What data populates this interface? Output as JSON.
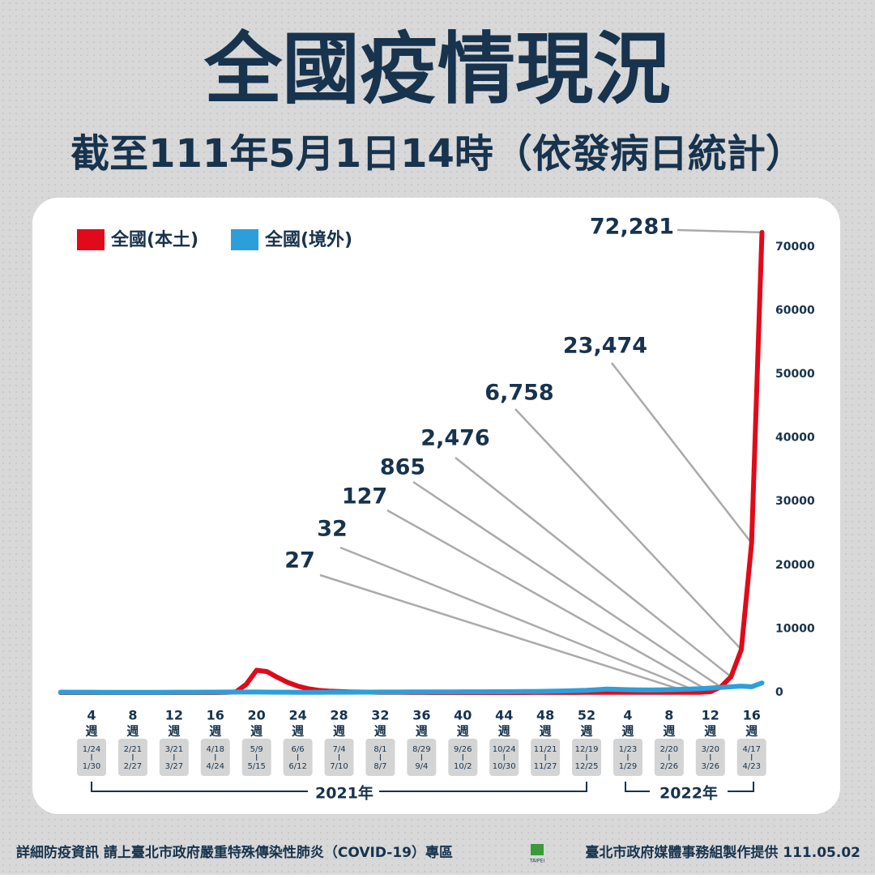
{
  "chart_data": {
    "type": "line",
    "title": "全國疫情現況",
    "subtitle": "截至111年5月1日14時（依發病日統計）",
    "categories": [
      null,
      null,
      null,
      "4",
      null,
      null,
      null,
      "8",
      null,
      null,
      null,
      "12",
      null,
      null,
      null,
      "16",
      null,
      null,
      null,
      "20",
      null,
      null,
      null,
      "24",
      null,
      null,
      null,
      "28",
      null,
      null,
      null,
      "32",
      null,
      null,
      null,
      "36",
      null,
      null,
      null,
      "40",
      null,
      null,
      null,
      "44",
      null,
      null,
      null,
      "48",
      null,
      null,
      null,
      "52",
      null,
      null,
      null,
      "4",
      null,
      null,
      null,
      "8",
      null,
      null,
      null,
      "12",
      null,
      null,
      null,
      "16",
      null
    ],
    "week_unit": "週",
    "category_dates": [
      null,
      null,
      null,
      [
        "1/24",
        "1/30"
      ],
      null,
      null,
      null,
      [
        "2/21",
        "2/27"
      ],
      null,
      null,
      null,
      [
        "3/21",
        "3/27"
      ],
      null,
      null,
      null,
      [
        "4/18",
        "4/24"
      ],
      null,
      null,
      null,
      [
        "5/9",
        "5/15"
      ],
      null,
      null,
      null,
      [
        "6/6",
        "6/12"
      ],
      null,
      null,
      null,
      [
        "7/4",
        "7/10"
      ],
      null,
      null,
      null,
      [
        "8/1",
        "8/7"
      ],
      null,
      null,
      null,
      [
        "8/29",
        "9/4"
      ],
      null,
      null,
      null,
      [
        "9/26",
        "10/2"
      ],
      null,
      null,
      null,
      [
        "10/24",
        "10/30"
      ],
      null,
      null,
      null,
      [
        "11/21",
        "11/27"
      ],
      null,
      null,
      null,
      [
        "12/19",
        "12/25"
      ],
      null,
      null,
      null,
      [
        "1/23",
        "1/29"
      ],
      null,
      null,
      null,
      [
        "2/20",
        "2/26"
      ],
      null,
      null,
      null,
      [
        "3/20",
        "3/26"
      ],
      null,
      null,
      null,
      [
        "4/17",
        "4/23"
      ],
      null
    ],
    "year_labels": [
      "2021年",
      "2022年"
    ],
    "series": [
      {
        "name": "全國(本土)",
        "color": "#e10a1a",
        "values": [
          3,
          2,
          1,
          2,
          3,
          2,
          1,
          0,
          1,
          1,
          2,
          1,
          2,
          3,
          4,
          5,
          20,
          90,
          1300,
          3500,
          3300,
          2400,
          1600,
          1000,
          600,
          350,
          220,
          150,
          100,
          80,
          60,
          40,
          30,
          20,
          10,
          8,
          6,
          5,
          4,
          3,
          3,
          4,
          5,
          4,
          5,
          6,
          8,
          10,
          12,
          15,
          18,
          20,
          22,
          25,
          28,
          30,
          26,
          24,
          22,
          20,
          25,
          27,
          32,
          127,
          865,
          2476,
          6758,
          23474,
          72281
        ],
        "value_labels": [
          null,
          null,
          null,
          null,
          null,
          null,
          null,
          null,
          null,
          null,
          null,
          null,
          null,
          null,
          null,
          null,
          null,
          null,
          null,
          null,
          null,
          null,
          null,
          null,
          null,
          null,
          null,
          null,
          null,
          null,
          null,
          null,
          null,
          null,
          null,
          null,
          null,
          null,
          null,
          null,
          null,
          null,
          null,
          null,
          null,
          null,
          null,
          null,
          null,
          null,
          null,
          null,
          null,
          null,
          null,
          null,
          null,
          null,
          null,
          null,
          null,
          "27",
          "32",
          "127",
          "865",
          "2,476",
          "6,758",
          "23,474",
          "72,281"
        ]
      },
      {
        "name": "全國(境外)",
        "color": "#2c9fda",
        "values": [
          60,
          55,
          50,
          45,
          40,
          40,
          35,
          30,
          30,
          35,
          40,
          45,
          50,
          55,
          60,
          65,
          70,
          75,
          80,
          70,
          60,
          50,
          45,
          40,
          35,
          40,
          45,
          50,
          55,
          60,
          65,
          70,
          75,
          80,
          85,
          90,
          95,
          100,
          105,
          110,
          115,
          120,
          125,
          130,
          140,
          150,
          170,
          190,
          220,
          260,
          300,
          350,
          450,
          550,
          500,
          450,
          420,
          400,
          420,
          450,
          500,
          550,
          600,
          700,
          800,
          900,
          1000,
          900,
          1500
        ]
      }
    ],
    "ylim": [
      0,
      75000
    ],
    "yticks": [
      0,
      10000,
      20000,
      30000,
      40000,
      50000,
      60000,
      70000
    ]
  },
  "footer": {
    "left": "詳細防疫資訊 請上臺北市政府嚴重特殊傳染性肺炎（COVID-19）專區",
    "logo": "TAIPEI",
    "right": "臺北市政府媒體事務組製作提供 111.05.02"
  }
}
